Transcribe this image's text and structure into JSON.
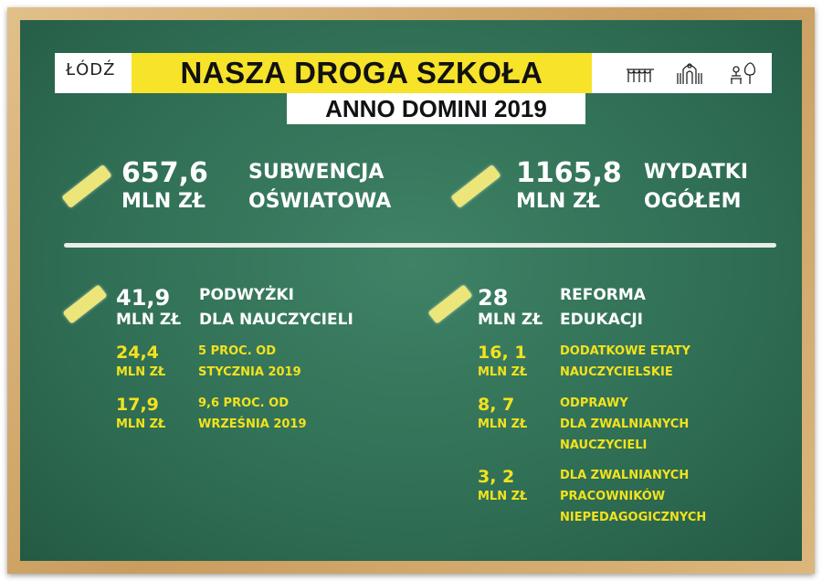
{
  "header": {
    "logo_text": "ŁÓDŹ",
    "title": "NASZA DROGA SZKOŁA",
    "subtitle": "ANNO DOMINI 2019",
    "icons": [
      "arcade-icon",
      "gate-icon",
      "park-bench-icon"
    ]
  },
  "colors": {
    "board": "#2f6e54",
    "accent": "#f6e32a",
    "frame": "#d2aa6e"
  },
  "top": [
    {
      "value": "657,6",
      "unit": "MLN ZŁ",
      "label1": "SUBWENCJA",
      "label2": "OŚWIATOWA"
    },
    {
      "value": "1165,8",
      "unit": "MLN ZŁ",
      "label1": "WYDATKI",
      "label2": "OGÓŁEM"
    }
  ],
  "left": {
    "value": "41,9",
    "unit": "MLN ZŁ",
    "label1": "PODWYŻKI",
    "label2": "DLA NAUCZYCIELI",
    "items": [
      {
        "value": "24,4",
        "unit": "MLN ZŁ",
        "lines": [
          "5 PROC. OD",
          "STYCZNIA 2019"
        ]
      },
      {
        "value": "17,9",
        "unit": "MLN ZŁ",
        "lines": [
          "9,6 PROC. OD",
          "WRZEŚNIA 2019"
        ]
      }
    ]
  },
  "right": {
    "value": "28",
    "unit": "MLN ZŁ",
    "label1": "REFORMA",
    "label2": "EDUKACJI",
    "items": [
      {
        "value": "16, 1",
        "unit": "MLN ZŁ",
        "lines": [
          "DODATKOWE ETATY",
          "NAUCZYCIELSKIE"
        ]
      },
      {
        "value": "8, 7",
        "unit": "MLN ZŁ",
        "lines": [
          "ODPRAWY",
          "DLA ZWALNIANYCH",
          "NAUCZYCIELI"
        ]
      },
      {
        "value": "3, 2",
        "unit": "MLN ZŁ",
        "lines": [
          "DLA ZWALNIANYCH",
          "PRACOWNIKÓW",
          "NIEPEDAGOGICZNYCH"
        ]
      }
    ]
  }
}
